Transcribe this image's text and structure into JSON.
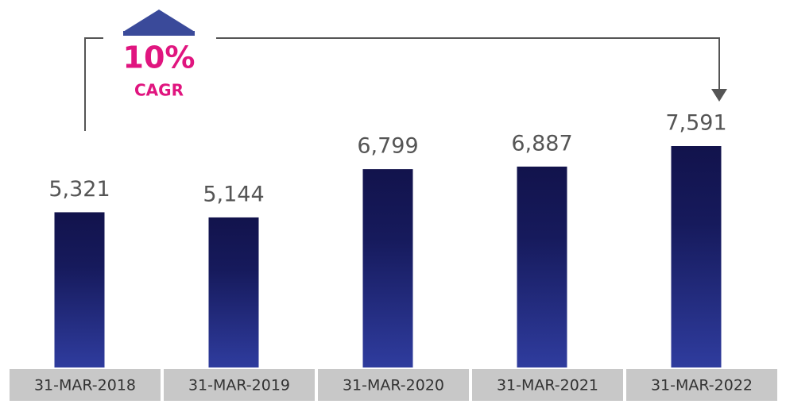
{
  "chart_data": {
    "type": "bar",
    "categories": [
      "31-MAR-2018",
      "31-MAR-2019",
      "31-MAR-2020",
      "31-MAR-2021",
      "31-MAR-2022"
    ],
    "values": [
      5321,
      5144,
      6799,
      6887,
      7591
    ],
    "value_labels": [
      "5,321",
      "5,144",
      "6,799",
      "6,887",
      "7,591"
    ],
    "annotations": [
      "10%",
      "CAGR"
    ]
  }
}
